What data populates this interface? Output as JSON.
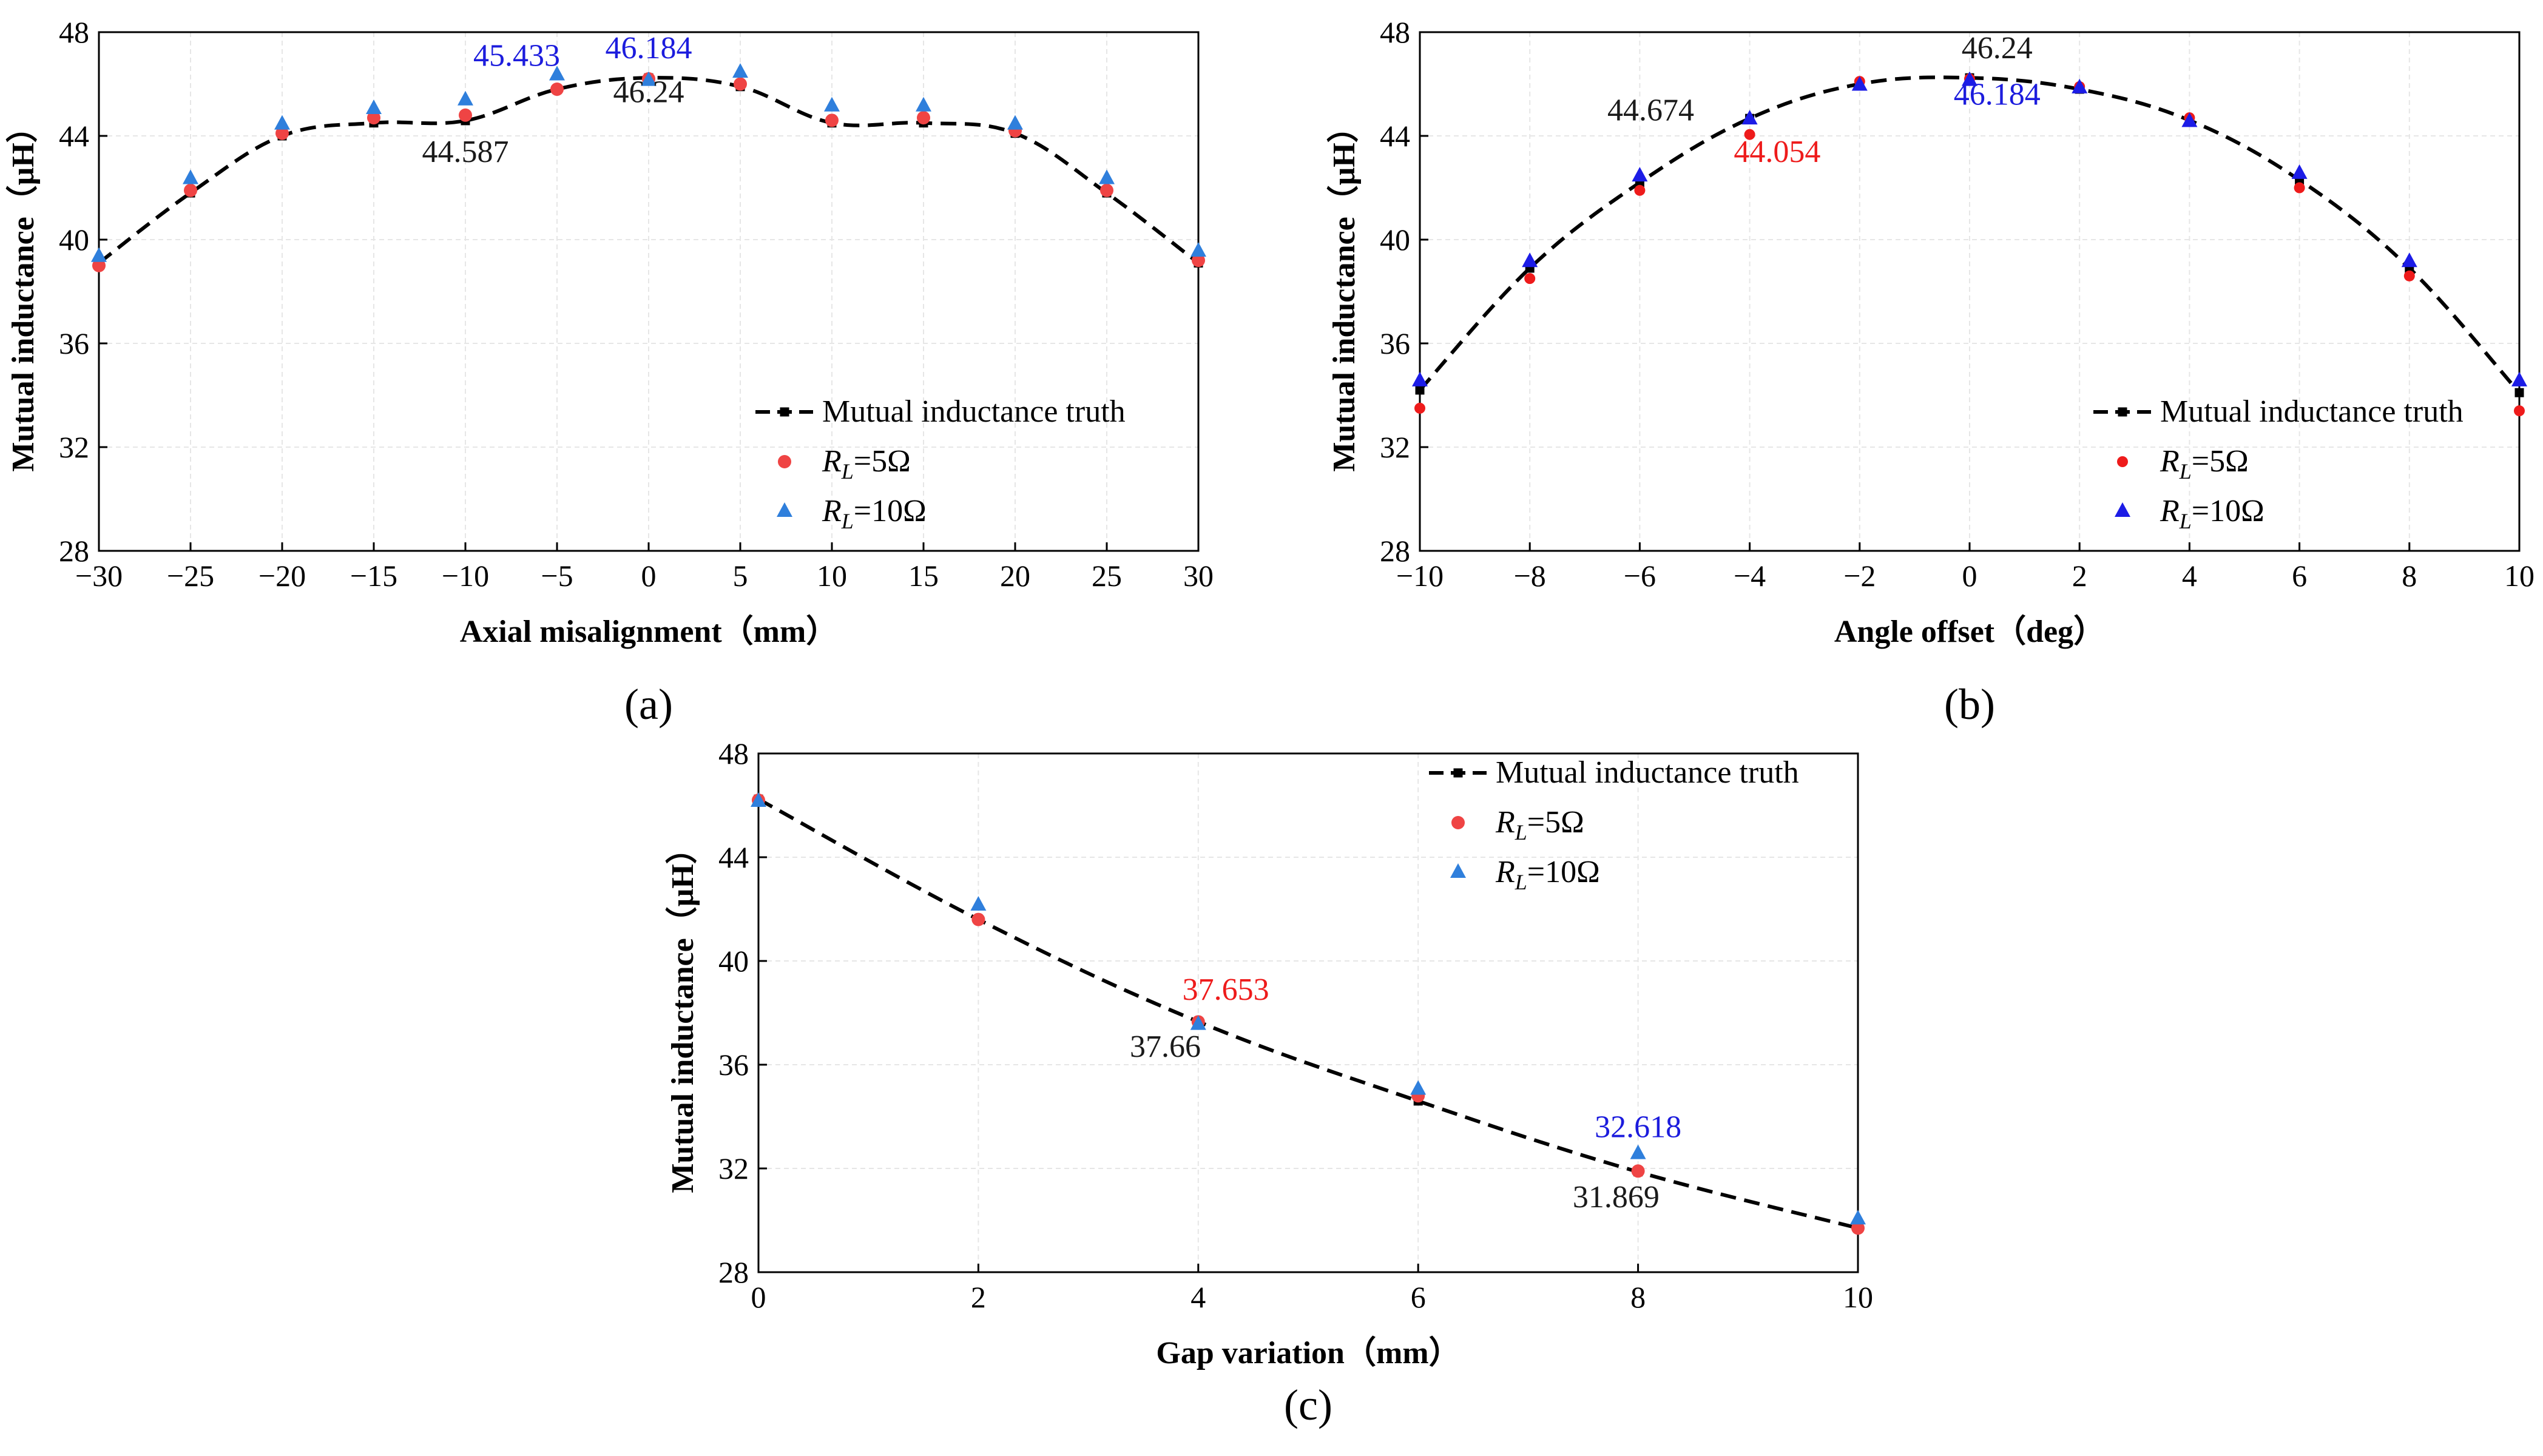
{
  "colors": {
    "truth": "#000000",
    "rl5_a": "#ef4444",
    "rl10_a": "#2f7fdc",
    "rl5_b": "#ee1b1b",
    "rl10_b": "#1c1ce6",
    "annot_black": "#1a1a1a",
    "annot_blue": "#1c1cdd",
    "annot_red": "#ee1b1b",
    "grid": "#e6e6e6"
  },
  "legend": {
    "truth_label": "Mutual inductance truth",
    "rl_symbol": "R",
    "rl_subscript": "L",
    "rl5_suffix": "=5Ω",
    "rl10_suffix": "=10Ω"
  },
  "chart_data": [
    {
      "id": "a",
      "type": "scatter",
      "panel_label": "(a)",
      "xlabel": "Axial misalignment（mm）",
      "ylabel": "Mutual inductance（μH）",
      "xlim": [
        -30,
        30
      ],
      "ylim": [
        28,
        48
      ],
      "xticks": [
        -30,
        -25,
        -20,
        -15,
        -10,
        -5,
        0,
        5,
        10,
        15,
        20,
        25,
        30
      ],
      "xtick_labels": [
        "−30",
        "−25",
        "−20",
        "−15",
        "−10",
        "−5",
        "0",
        "5",
        "10",
        "15",
        "20",
        "25",
        "30"
      ],
      "yticks": [
        28,
        32,
        36,
        40,
        44,
        48
      ],
      "legend_position": "bottom-right",
      "series": [
        {
          "name": "Mutual inductance truth",
          "x": [
            -30,
            -25,
            -20,
            -15,
            -10,
            -5,
            0,
            5,
            10,
            15,
            20,
            25,
            30
          ],
          "y": [
            39.1,
            41.8,
            44.0,
            44.5,
            44.587,
            45.8,
            46.24,
            45.9,
            44.5,
            44.5,
            44.1,
            41.8,
            39.1
          ]
        },
        {
          "name": "RL=5Ω",
          "x": [
            -30,
            -25,
            -20,
            -15,
            -10,
            -5,
            0,
            5,
            10,
            15,
            20,
            25,
            30
          ],
          "y": [
            39.0,
            41.9,
            44.1,
            44.7,
            44.8,
            45.8,
            46.2,
            46.0,
            44.6,
            44.7,
            44.2,
            41.9,
            39.2
          ]
        },
        {
          "name": "RL=10Ω",
          "x": [
            -30,
            -25,
            -20,
            -15,
            -10,
            -5,
            0,
            5,
            10,
            15,
            20,
            25,
            30
          ],
          "y": [
            39.4,
            42.4,
            44.5,
            45.1,
            45.433,
            46.4,
            46.184,
            46.5,
            45.2,
            45.2,
            44.5,
            42.4,
            39.6
          ]
        }
      ],
      "annotations": [
        {
          "text": "45.433",
          "x": -7.2,
          "y": 46.7,
          "color": "blue"
        },
        {
          "text": "46.184",
          "x": 0,
          "y": 47.0,
          "color": "blue"
        },
        {
          "text": "44.587",
          "x": -10,
          "y": 43.0,
          "color": "black"
        },
        {
          "text": "46.24",
          "x": 0,
          "y": 45.3,
          "color": "black"
        }
      ]
    },
    {
      "id": "b",
      "type": "scatter",
      "panel_label": "(b)",
      "xlabel": "Angle offset（deg）",
      "ylabel": "Mutual inductance（μH）",
      "xlim": [
        -10,
        10
      ],
      "ylim": [
        28,
        48
      ],
      "xticks": [
        -10,
        -8,
        -6,
        -4,
        -2,
        0,
        2,
        4,
        6,
        8,
        10
      ],
      "xtick_labels": [
        "−10",
        "−8",
        "−6",
        "−4",
        "−2",
        "0",
        "2",
        "4",
        "6",
        "8",
        "10"
      ],
      "yticks": [
        28,
        32,
        36,
        40,
        44,
        48
      ],
      "legend_position": "bottom-right",
      "series": [
        {
          "name": "Mutual inductance truth",
          "x": [
            -10,
            -8,
            -6,
            -4,
            -2,
            0,
            2,
            4,
            6,
            8,
            10
          ],
          "y": [
            34.2,
            38.9,
            42.2,
            44.674,
            46.0,
            46.24,
            45.8,
            44.6,
            42.3,
            38.9,
            34.1
          ]
        },
        {
          "name": "RL=5Ω",
          "x": [
            -10,
            -8,
            -6,
            -4,
            -2,
            0,
            2,
            4,
            6,
            8,
            10
          ],
          "y": [
            33.5,
            38.5,
            41.9,
            44.054,
            46.1,
            46.2,
            45.9,
            44.7,
            42.0,
            38.6,
            33.4
          ]
        },
        {
          "name": "RL=10Ω",
          "x": [
            -10,
            -8,
            -6,
            -4,
            -2,
            0,
            2,
            4,
            6,
            8,
            10
          ],
          "y": [
            34.6,
            39.2,
            42.5,
            44.7,
            46.0,
            46.184,
            45.9,
            44.6,
            42.6,
            39.2,
            34.6
          ]
        }
      ],
      "annotations": [
        {
          "text": "44.674",
          "x": -5.8,
          "y": 44.6,
          "color": "black"
        },
        {
          "text": "44.054",
          "x": -3.5,
          "y": 43.0,
          "color": "red"
        },
        {
          "text": "46.24",
          "x": 0.5,
          "y": 47.0,
          "color": "black"
        },
        {
          "text": "46.184",
          "x": 0.5,
          "y": 45.2,
          "color": "blue"
        }
      ]
    },
    {
      "id": "c",
      "type": "scatter",
      "panel_label": "(c)",
      "xlabel": "Gap variation（mm）",
      "ylabel": "Mutual inductance（μH）",
      "xlim": [
        0,
        10
      ],
      "ylim": [
        28,
        48
      ],
      "xticks": [
        0,
        2,
        4,
        6,
        8,
        10
      ],
      "xtick_labels": [
        "0",
        "2",
        "4",
        "6",
        "8",
        "10"
      ],
      "yticks": [
        28,
        32,
        36,
        40,
        44,
        48
      ],
      "legend_position": "top-right",
      "series": [
        {
          "name": "Mutual inductance truth",
          "x": [
            0,
            2,
            4,
            6,
            8,
            10
          ],
          "y": [
            46.24,
            41.6,
            37.66,
            34.6,
            31.869,
            29.7
          ]
        },
        {
          "name": "RL=5Ω",
          "x": [
            0,
            2,
            4,
            6,
            8,
            10
          ],
          "y": [
            46.2,
            41.6,
            37.653,
            34.8,
            31.9,
            29.7
          ]
        },
        {
          "name": "RL=10Ω",
          "x": [
            0,
            2,
            4,
            6,
            8,
            10
          ],
          "y": [
            46.2,
            42.2,
            37.6,
            35.1,
            32.618,
            30.1
          ]
        }
      ],
      "annotations": [
        {
          "text": "37.653",
          "x": 4.25,
          "y": 38.5,
          "color": "red"
        },
        {
          "text": "37.66",
          "x": 3.7,
          "y": 36.3,
          "color": "black"
        },
        {
          "text": "32.618",
          "x": 8.0,
          "y": 33.2,
          "color": "blue"
        },
        {
          "text": "31.869",
          "x": 7.8,
          "y": 30.5,
          "color": "black"
        }
      ]
    }
  ]
}
